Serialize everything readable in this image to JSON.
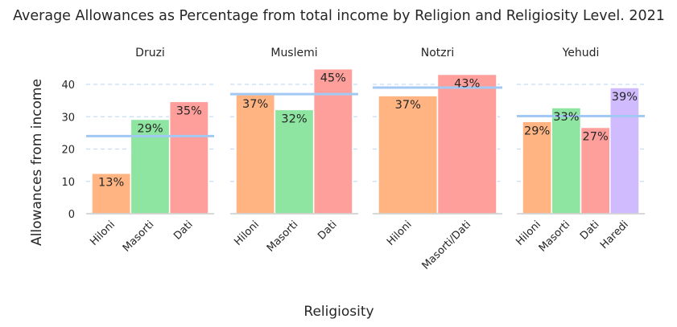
{
  "chart_data": {
    "type": "bar",
    "title": "Average Allowances as Percentage from total income by Religion and Religiosity Level. 2021",
    "xlabel": "Religiosity",
    "ylabel": "Allowances from income",
    "ylim": [
      0,
      45
    ],
    "yticks": [
      0,
      10,
      20,
      30,
      40
    ],
    "grid": "horizontal dashed",
    "colors": {
      "Hiloni": "#ffb482",
      "Masorti": "#8de5a1",
      "Dati": "#ff9f9b",
      "Haredi": "#d0bbff",
      "Masorti/Dati": "#ff9f9b",
      "mean_line": "#a1c9f4",
      "grid": "#c7dcf5",
      "text": "#262626"
    },
    "facets": [
      {
        "name": "Druzi",
        "categories": [
          "Hiloni",
          "Masorti",
          "Dati"
        ],
        "values": [
          12.5,
          29.2,
          34.7
        ],
        "labels": [
          "13%",
          "29%",
          "35%"
        ],
        "mean_line": 24.0
      },
      {
        "name": "Muslemi",
        "categories": [
          "Hiloni",
          "Masorti",
          "Dati"
        ],
        "values": [
          36.8,
          32.2,
          44.8
        ],
        "labels": [
          "37%",
          "32%",
          "45%"
        ],
        "mean_line": 37.0
      },
      {
        "name": "Notzri",
        "categories": [
          "Hiloni",
          "Masorti/Dati"
        ],
        "values": [
          36.5,
          43.1
        ],
        "labels": [
          "37%",
          "43%"
        ],
        "mean_line": 39.0
      },
      {
        "name": "Yehudi",
        "categories": [
          "Hiloni",
          "Masorti",
          "Dati",
          "Haredi"
        ],
        "values": [
          28.5,
          32.8,
          26.7,
          39.0
        ],
        "labels": [
          "29%",
          "33%",
          "27%",
          "39%"
        ],
        "mean_line": 30.2
      }
    ]
  }
}
